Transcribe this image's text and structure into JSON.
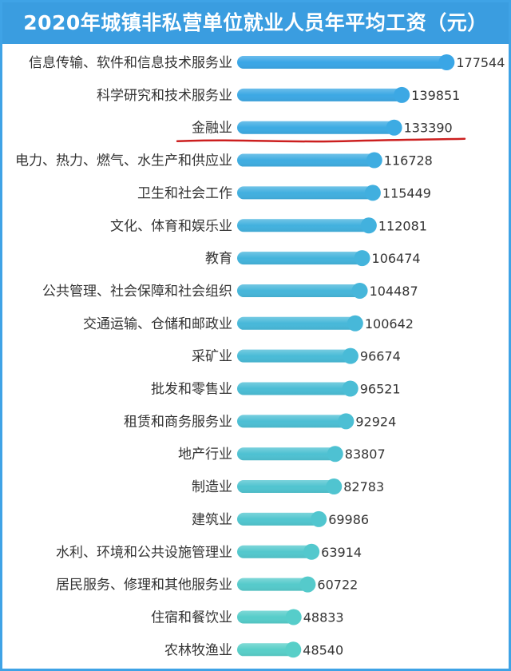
{
  "title": "2020年城镇非私营单位就业人员年平均工资（元）",
  "colors": {
    "header": "#3a9de0",
    "frame": "#3fa3e6",
    "bar_top": "#3aa6e6",
    "bar_bottom": "#58cfc8",
    "highlight_line": "#cc1f1f"
  },
  "chart_data": {
    "type": "bar",
    "orientation": "horizontal",
    "title": "2020年城镇非私营单位就业人员年平均工资（元）",
    "categories": [
      "信息传输、软件和信息技术服务业",
      "科学研究和技术服务业",
      "金融业",
      "电力、热力、燃气、水生产和供应业",
      "卫生和社会工作",
      "文化、体育和娱乐业",
      "教育",
      "公共管理、社会保障和社会组织",
      "交通运输、仓储和邮政业",
      "采矿业",
      "批发和零售业",
      "租赁和商务服务业",
      "地产行业",
      "制造业",
      "建筑业",
      "水利、环境和公共设施管理业",
      "居民服务、修理和其他服务业",
      "住宿和餐饮业",
      "农林牧渔业"
    ],
    "values": [
      177544,
      139851,
      133390,
      116728,
      115449,
      112081,
      106474,
      104487,
      100642,
      96674,
      96521,
      92924,
      83807,
      82783,
      69986,
      63914,
      60722,
      48833,
      48540
    ],
    "value_labels": [
      "177544",
      "139851",
      "133390",
      "116728",
      "115449",
      "112081",
      "106474",
      "104487",
      "100642",
      "96674",
      "96521",
      "92924",
      "83807",
      "82783",
      "69986",
      "63914",
      "60722",
      "48833",
      "48540"
    ],
    "highlighted_category": "金融业",
    "grid": false,
    "legend": "none"
  }
}
